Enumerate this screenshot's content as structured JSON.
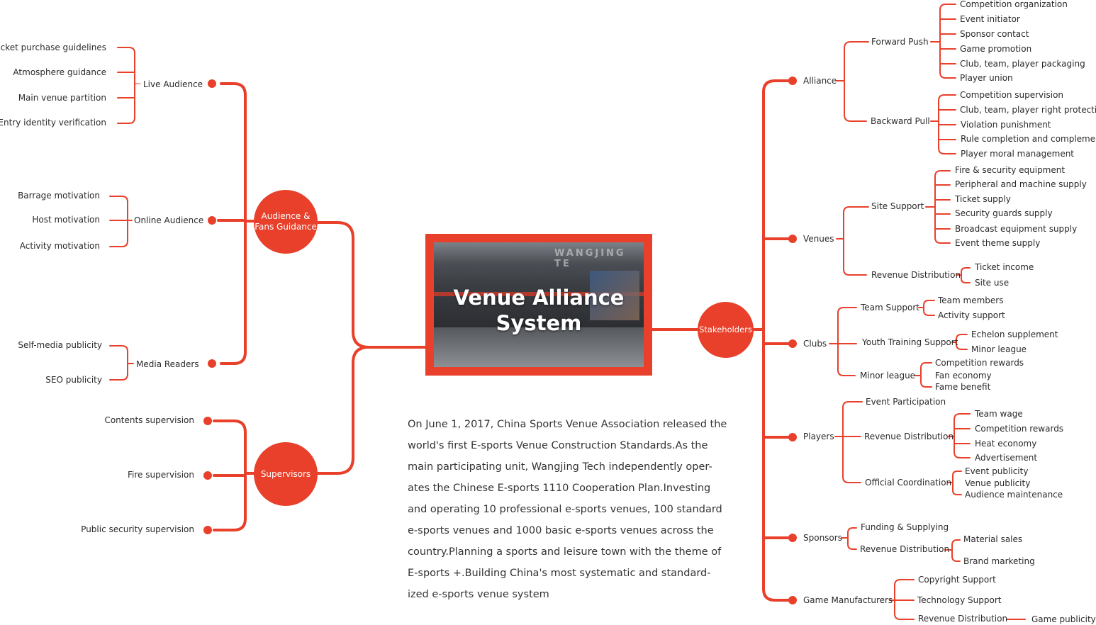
{
  "accent": "#e8402a",
  "center": {
    "title_line1": "Venue Alliance",
    "title_line2": "System",
    "photo_sign": "WANGJING TE"
  },
  "description": [
    "On June 1, 2017, China Sports Venue Association released the",
    "world's first E-sports Venue Construction Standards.As the",
    "main participating unit, Wangjing Tech independently oper-",
    "ates the Chinese E-sports 1110 Cooperation Plan.Investing",
    "and operating 10 professional e-sports venues, 100 standard",
    "e-sports venues and 1000 basic e-sports venues across the",
    "country.Planning a sports and leisure town with the theme of",
    "E-sports +.Building China's most systematic and standard-",
    "ized e-sports venue system"
  ],
  "left": {
    "audience": {
      "label_line1": "Audience &",
      "label_line2": "Fans Guidance",
      "live": {
        "label": "Live Audience",
        "items": [
          "Ticket purchase guidelines",
          "Atmosphere guidance",
          "Main venue partition",
          "Entry identity verification"
        ]
      },
      "online": {
        "label": "Online Audience",
        "items": [
          "Barrage motivation",
          "Host motivation",
          "Activity motivation"
        ]
      },
      "media": {
        "label": "Media Readers",
        "items": [
          "Self-media publicity",
          "SEO publicity"
        ]
      }
    },
    "supervisors": {
      "label": "Supervisors",
      "items": [
        "Contents supervision",
        "Fire supervision",
        "Public security supervision"
      ]
    }
  },
  "right": {
    "label": "Stakeholders",
    "alliance": {
      "label": "Alliance",
      "forward": {
        "label": "Forward Push",
        "items": [
          "Competition organization",
          "Event initiator",
          "Sponsor contact",
          "Game promotion",
          "Club, team, player packaging",
          "Player union"
        ]
      },
      "backward": {
        "label": "Backward Pull",
        "items": [
          "Competition supervision",
          "Club, team, player right protection",
          "Violation punishment",
          "Rule completion and complement",
          "Player moral management"
        ]
      }
    },
    "venues": {
      "label": "Venues",
      "site": {
        "label": "Site Support",
        "items": [
          "Fire & security equipment",
          "Peripheral and machine supply",
          "Ticket supply",
          "Security guards supply",
          "Broadcast equipment supply",
          "Event theme supply"
        ]
      },
      "revenue": {
        "label": "Revenue Distribution",
        "items": [
          "Ticket income",
          "Site use"
        ]
      }
    },
    "clubs": {
      "label": "Clubs",
      "team": {
        "label": "Team Support",
        "items": [
          "Team members",
          "Activity support"
        ]
      },
      "youth": {
        "label": "Youth Training Support",
        "items": [
          "Echelon supplement",
          "Minor league"
        ]
      },
      "minor": {
        "label": "Minor league",
        "items": [
          "Competition rewards",
          "Fan economy",
          "Fame benefit"
        ]
      }
    },
    "players": {
      "label": "Players",
      "event": {
        "label": "Event Participation"
      },
      "revenue": {
        "label": "Revenue Distribution",
        "items": [
          "Team wage",
          "Competition rewards",
          "Heat economy",
          "Advertisement"
        ]
      },
      "official": {
        "label": "Official Coordination",
        "items": [
          "Event publicity",
          "Venue publicity",
          "Audience maintenance"
        ]
      }
    },
    "sponsors": {
      "label": "Sponsors",
      "funding": {
        "label": "Funding & Supplying"
      },
      "revenue": {
        "label": "Revenue Distribution",
        "items": [
          "Material sales",
          "Brand marketing"
        ]
      }
    },
    "game": {
      "label": "Game Manufacturers",
      "copyright": {
        "label": "Copyright Support"
      },
      "tech": {
        "label": "Technology Support"
      },
      "revenue": {
        "label": "Revenue Distribution",
        "items": [
          "Game publicity"
        ]
      }
    }
  }
}
